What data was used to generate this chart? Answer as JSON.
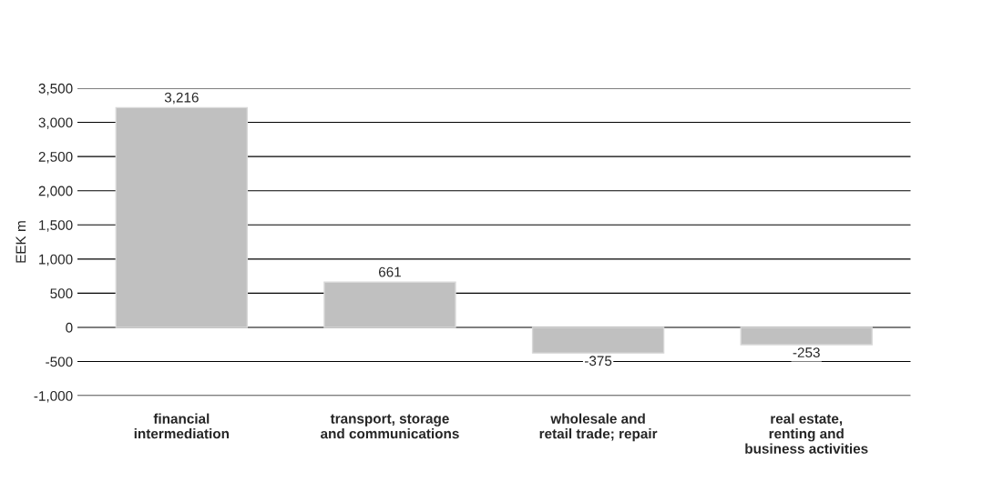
{
  "chart_data": {
    "type": "bar",
    "ylabel": "EEK m",
    "categories": [
      "financial\nintermediation",
      "transport, storage\nand communications",
      "wholesale and\nretail trade; repair",
      "real estate,\nrenting and\nbusiness activities"
    ],
    "values": [
      3216,
      661,
      -375,
      -253
    ],
    "value_labels": [
      "3,216",
      "661",
      "-375",
      "-253"
    ],
    "color": "#c0c0c0",
    "ylim": [
      -1000,
      3500
    ],
    "yticks": [
      {
        "value": -1000,
        "label": "-1,000"
      },
      {
        "value": -500,
        "label": "-500"
      },
      0,
      500,
      {
        "value": 1000,
        "label": "1,000"
      },
      {
        "value": 1500,
        "label": "1,500"
      },
      {
        "value": 2000,
        "label": "2,000"
      },
      {
        "value": 2500,
        "label": "2,500"
      },
      {
        "value": 3000,
        "label": "3,000"
      },
      {
        "value": 3500,
        "label": "3,500"
      }
    ],
    "grid": "y"
  }
}
